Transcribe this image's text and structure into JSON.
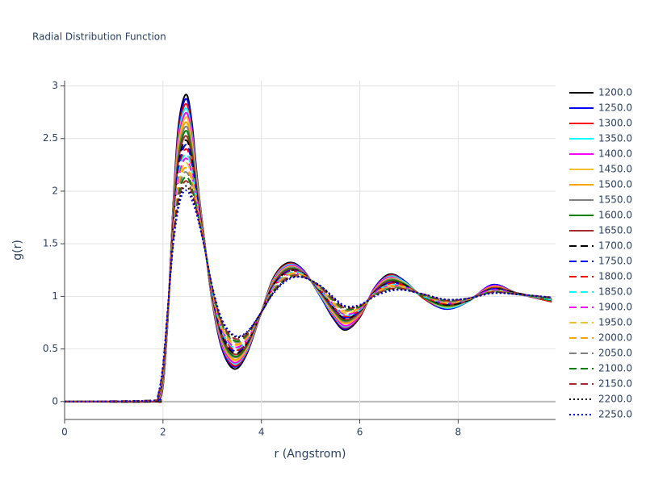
{
  "chart_data": {
    "type": "line",
    "title": "Radial Distribution Function",
    "x_label": "r (Angstrom)",
    "y_label": "g(r)",
    "xlim": [
      0,
      9.98
    ],
    "ylim": [
      -0.17,
      3.05
    ],
    "xticks": [
      0,
      2,
      4,
      6,
      8
    ],
    "yticks": [
      0,
      0.5,
      1,
      1.5,
      2,
      2.5,
      3
    ],
    "grid": true,
    "legend": "right",
    "x": [
      0,
      1.8,
      1.9,
      2.0,
      2.1,
      2.2,
      2.3,
      2.4,
      2.5,
      2.6,
      2.7,
      2.85,
      3.0,
      3.2,
      3.45,
      3.7,
      4.0,
      4.25,
      4.55,
      4.85,
      5.2,
      5.45,
      5.7,
      6.0,
      6.3,
      6.6,
      6.9,
      7.3,
      7.75,
      8.2,
      8.7,
      9.2,
      9.9
    ],
    "series": [
      {
        "name": "1200.0",
        "color": "#000000",
        "dash": "solid",
        "values": [
          0,
          0,
          0.01,
          0.15,
          0.8,
          1.8,
          2.55,
          2.85,
          2.9,
          2.6,
          2.1,
          1.5,
          0.95,
          0.5,
          0.31,
          0.45,
          0.85,
          1.18,
          1.32,
          1.25,
          1.0,
          0.8,
          0.68,
          0.8,
          1.08,
          1.21,
          1.15,
          0.98,
          0.88,
          0.95,
          1.11,
          1.03,
          0.95
        ]
      },
      {
        "name": "1250.0",
        "color": "#0000ff",
        "dash": "solid",
        "values": [
          0,
          0,
          0.01,
          0.16,
          0.8,
          1.78,
          2.51,
          2.81,
          2.86,
          2.57,
          2.08,
          1.5,
          0.96,
          0.51,
          0.33,
          0.46,
          0.85,
          1.17,
          1.31,
          1.25,
          1.0,
          0.81,
          0.69,
          0.81,
          1.08,
          1.2,
          1.15,
          0.98,
          0.88,
          0.95,
          1.11,
          1.03,
          0.95
        ]
      },
      {
        "name": "1300.0",
        "color": "#ff0000",
        "dash": "solid",
        "values": [
          0,
          0,
          0.01,
          0.17,
          0.81,
          1.77,
          2.48,
          2.77,
          2.81,
          2.53,
          2.07,
          1.5,
          0.96,
          0.53,
          0.34,
          0.47,
          0.85,
          1.17,
          1.31,
          1.24,
          1.01,
          0.82,
          0.7,
          0.81,
          1.07,
          1.2,
          1.14,
          0.98,
          0.89,
          0.95,
          1.1,
          1.03,
          0.95
        ]
      },
      {
        "name": "1350.0",
        "color": "#00ffff",
        "dash": "solid",
        "values": [
          0,
          0,
          0.02,
          0.18,
          0.81,
          1.75,
          2.44,
          2.73,
          2.77,
          2.5,
          2.05,
          1.49,
          0.97,
          0.54,
          0.36,
          0.48,
          0.85,
          1.16,
          1.3,
          1.24,
          1.01,
          0.83,
          0.71,
          0.82,
          1.07,
          1.19,
          1.14,
          0.99,
          0.89,
          0.95,
          1.1,
          1.03,
          0.96
        ]
      },
      {
        "name": "1400.0",
        "color": "#ff00ff",
        "dash": "solid",
        "values": [
          0,
          0,
          0.02,
          0.19,
          0.82,
          1.73,
          2.41,
          2.68,
          2.73,
          2.47,
          2.03,
          1.49,
          0.98,
          0.55,
          0.37,
          0.49,
          0.85,
          1.15,
          1.29,
          1.24,
          1.02,
          0.84,
          0.72,
          0.82,
          1.07,
          1.18,
          1.13,
          0.99,
          0.9,
          0.96,
          1.1,
          1.03,
          0.96
        ]
      },
      {
        "name": "1450.0",
        "color": "#f5c030",
        "dash": "solid",
        "values": [
          0,
          0,
          0.02,
          0.2,
          0.82,
          1.72,
          2.37,
          2.64,
          2.69,
          2.43,
          2.02,
          1.49,
          0.99,
          0.57,
          0.39,
          0.5,
          0.85,
          1.14,
          1.28,
          1.23,
          1.02,
          0.85,
          0.74,
          0.83,
          1.06,
          1.17,
          1.13,
          0.99,
          0.9,
          0.96,
          1.09,
          1.03,
          0.96
        ]
      },
      {
        "name": "1500.0",
        "color": "#ffa500",
        "dash": "solid",
        "values": [
          0,
          0,
          0.02,
          0.21,
          0.83,
          1.7,
          2.34,
          2.6,
          2.64,
          2.4,
          2.0,
          1.49,
          0.99,
          0.58,
          0.4,
          0.51,
          0.85,
          1.14,
          1.27,
          1.23,
          1.03,
          0.86,
          0.75,
          0.83,
          1.06,
          1.16,
          1.12,
          0.99,
          0.91,
          0.96,
          1.09,
          1.03,
          0.96
        ]
      },
      {
        "name": "1550.0",
        "color": "#808080",
        "dash": "solid",
        "values": [
          0,
          0,
          0.03,
          0.22,
          0.83,
          1.68,
          2.3,
          2.56,
          2.6,
          2.37,
          1.98,
          1.48,
          1.0,
          0.59,
          0.42,
          0.52,
          0.85,
          1.13,
          1.27,
          1.23,
          1.03,
          0.87,
          0.76,
          0.84,
          1.05,
          1.16,
          1.12,
          0.99,
          0.91,
          0.96,
          1.08,
          1.03,
          0.96
        ]
      },
      {
        "name": "1600.0",
        "color": "#008000",
        "dash": "solid",
        "values": [
          0,
          0,
          0.03,
          0.23,
          0.84,
          1.67,
          2.26,
          2.52,
          2.56,
          2.33,
          1.97,
          1.48,
          1.01,
          0.61,
          0.43,
          0.53,
          0.85,
          1.12,
          1.26,
          1.22,
          1.04,
          0.88,
          0.77,
          0.85,
          1.05,
          1.15,
          1.12,
          0.99,
          0.91,
          0.96,
          1.08,
          1.03,
          0.96
        ]
      },
      {
        "name": "1650.0",
        "color": "#a52a2a",
        "dash": "solid",
        "values": [
          0,
          0,
          0.03,
          0.24,
          0.84,
          1.65,
          2.23,
          2.48,
          2.51,
          2.3,
          1.95,
          1.48,
          1.01,
          0.62,
          0.45,
          0.54,
          0.85,
          1.12,
          1.25,
          1.22,
          1.04,
          0.89,
          0.78,
          0.85,
          1.05,
          1.14,
          1.11,
          1.0,
          0.92,
          0.96,
          1.08,
          1.03,
          0.97
        ]
      },
      {
        "name": "1700.0",
        "color": "#000000",
        "dash": "dash",
        "values": [
          0,
          0,
          0.03,
          0.25,
          0.85,
          1.63,
          2.19,
          2.44,
          2.47,
          2.27,
          1.93,
          1.48,
          1.02,
          0.63,
          0.46,
          0.55,
          0.85,
          1.11,
          1.24,
          1.22,
          1.05,
          0.9,
          0.79,
          0.86,
          1.04,
          1.13,
          1.11,
          1.0,
          0.92,
          0.96,
          1.07,
          1.03,
          0.97
        ]
      },
      {
        "name": "1750.0",
        "color": "#0000ff",
        "dash": "dash",
        "values": [
          0,
          0.01,
          0.04,
          0.25,
          0.85,
          1.62,
          2.16,
          2.39,
          2.43,
          2.23,
          1.92,
          1.47,
          1.03,
          0.65,
          0.48,
          0.56,
          0.85,
          1.1,
          1.24,
          1.21,
          1.05,
          0.9,
          0.8,
          0.86,
          1.04,
          1.13,
          1.1,
          1.0,
          0.93,
          0.97,
          1.07,
          1.02,
          0.97
        ]
      },
      {
        "name": "1800.0",
        "color": "#ff0000",
        "dash": "dash",
        "values": [
          0,
          0.01,
          0.04,
          0.26,
          0.86,
          1.6,
          2.12,
          2.35,
          2.39,
          2.2,
          1.9,
          1.47,
          1.04,
          0.66,
          0.49,
          0.57,
          0.85,
          1.09,
          1.23,
          1.21,
          1.06,
          0.91,
          0.81,
          0.87,
          1.03,
          1.12,
          1.1,
          1.0,
          0.93,
          0.97,
          1.06,
          1.02,
          0.97
        ]
      },
      {
        "name": "1850.0",
        "color": "#00ffff",
        "dash": "dash",
        "values": [
          0,
          0.01,
          0.04,
          0.27,
          0.86,
          1.58,
          2.09,
          2.31,
          2.34,
          2.17,
          1.88,
          1.47,
          1.04,
          0.67,
          0.51,
          0.58,
          0.85,
          1.09,
          1.22,
          1.21,
          1.06,
          0.92,
          0.82,
          0.87,
          1.03,
          1.11,
          1.09,
          1.0,
          0.94,
          0.97,
          1.06,
          1.02,
          0.97
        ]
      },
      {
        "name": "1900.0",
        "color": "#ff00ff",
        "dash": "dash",
        "values": [
          0,
          0.01,
          0.04,
          0.28,
          0.87,
          1.57,
          2.05,
          2.27,
          2.3,
          2.13,
          1.87,
          1.47,
          1.05,
          0.69,
          0.52,
          0.59,
          0.85,
          1.08,
          1.21,
          1.2,
          1.07,
          0.93,
          0.83,
          0.88,
          1.03,
          1.1,
          1.09,
          1.01,
          0.94,
          0.97,
          1.06,
          1.02,
          0.98
        ]
      },
      {
        "name": "1950.0",
        "color": "#f5c030",
        "dash": "dash",
        "values": [
          0,
          0.01,
          0.05,
          0.29,
          0.87,
          1.55,
          2.01,
          2.23,
          2.26,
          2.1,
          1.85,
          1.46,
          1.06,
          0.7,
          0.54,
          0.6,
          0.85,
          1.07,
          1.21,
          1.2,
          1.07,
          0.94,
          0.84,
          0.89,
          1.02,
          1.1,
          1.09,
          1.01,
          0.94,
          0.97,
          1.05,
          1.02,
          0.98
        ]
      },
      {
        "name": "2000.0",
        "color": "#ffa500",
        "dash": "dash",
        "values": [
          0,
          0.01,
          0.05,
          0.3,
          0.88,
          1.53,
          1.98,
          2.19,
          2.21,
          2.07,
          1.83,
          1.46,
          1.06,
          0.71,
          0.55,
          0.61,
          0.85,
          1.07,
          1.2,
          1.2,
          1.08,
          0.95,
          0.86,
          0.89,
          1.02,
          1.09,
          1.08,
          1.01,
          0.95,
          0.97,
          1.05,
          1.02,
          0.98
        ]
      },
      {
        "name": "2050.0",
        "color": "#808080",
        "dash": "dash",
        "values": [
          0,
          0.01,
          0.05,
          0.31,
          0.88,
          1.52,
          1.94,
          2.15,
          2.17,
          2.03,
          1.82,
          1.46,
          1.07,
          0.73,
          0.57,
          0.62,
          0.85,
          1.06,
          1.19,
          1.19,
          1.08,
          0.96,
          0.87,
          0.9,
          1.02,
          1.08,
          1.08,
          1.01,
          0.95,
          0.97,
          1.05,
          1.02,
          0.98
        ]
      },
      {
        "name": "2100.0",
        "color": "#008000",
        "dash": "dash",
        "values": [
          0,
          0.01,
          0.05,
          0.32,
          0.89,
          1.5,
          1.91,
          2.1,
          2.13,
          2.0,
          1.8,
          1.46,
          1.08,
          0.74,
          0.58,
          0.63,
          0.85,
          1.05,
          1.18,
          1.19,
          1.09,
          0.97,
          0.88,
          0.9,
          1.01,
          1.07,
          1.07,
          1.01,
          0.96,
          0.98,
          1.04,
          1.02,
          0.98
        ]
      },
      {
        "name": "2150.0",
        "color": "#a52a2a",
        "dash": "dash",
        "values": [
          0,
          0.01,
          0.06,
          0.33,
          0.89,
          1.48,
          1.87,
          2.06,
          2.09,
          1.97,
          1.78,
          1.45,
          1.09,
          0.75,
          0.6,
          0.64,
          0.85,
          1.04,
          1.18,
          1.19,
          1.09,
          0.98,
          0.89,
          0.91,
          1.01,
          1.07,
          1.07,
          1.02,
          0.96,
          0.98,
          1.04,
          1.02,
          0.99
        ]
      },
      {
        "name": "2200.0",
        "color": "#000000",
        "dash": "dot",
        "values": [
          0,
          0.01,
          0.06,
          0.34,
          0.9,
          1.47,
          1.84,
          2.02,
          2.04,
          1.93,
          1.77,
          1.45,
          1.09,
          0.77,
          0.62,
          0.65,
          0.85,
          1.04,
          1.17,
          1.18,
          1.1,
          0.99,
          0.9,
          0.91,
          1.0,
          1.06,
          1.06,
          1.02,
          0.97,
          0.98,
          1.03,
          1.02,
          0.99
        ]
      },
      {
        "name": "2250.0",
        "color": "#0000ff",
        "dash": "dot",
        "values": [
          0,
          0.01,
          0.06,
          0.35,
          0.9,
          1.45,
          1.8,
          1.98,
          2.0,
          1.9,
          1.75,
          1.45,
          1.1,
          0.78,
          0.63,
          0.66,
          0.85,
          1.03,
          1.16,
          1.18,
          1.1,
          1.0,
          0.91,
          0.92,
          1.0,
          1.05,
          1.06,
          1.02,
          0.97,
          0.98,
          1.03,
          1.02,
          0.99
        ]
      }
    ]
  }
}
